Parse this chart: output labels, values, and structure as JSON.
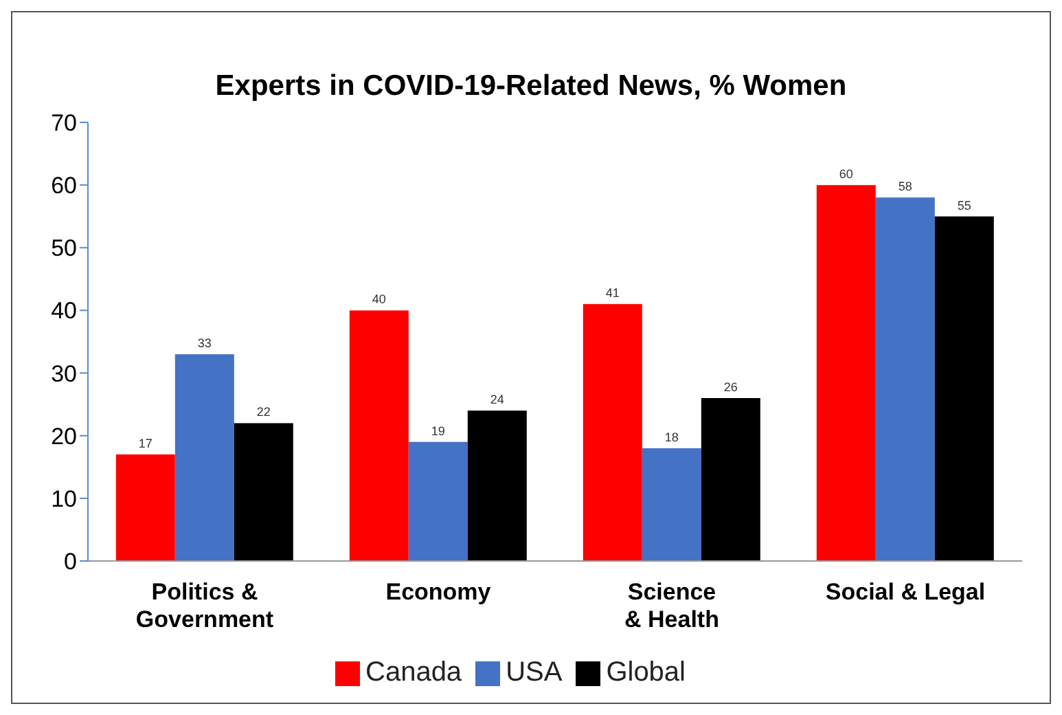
{
  "chart_data": {
    "type": "bar",
    "title": "Experts in COVID-19-Related News, % Women",
    "categories": [
      "Politics &\nGovernment",
      "Economy",
      "Science\n& Health",
      "Social & Legal"
    ],
    "series": [
      {
        "name": "Canada",
        "color": "#ff0000",
        "values": [
          17,
          40,
          41,
          60
        ]
      },
      {
        "name": "USA",
        "color": "#4472c4",
        "values": [
          33,
          19,
          18,
          58
        ]
      },
      {
        "name": "Global",
        "color": "#000000",
        "values": [
          22,
          24,
          26,
          55
        ]
      }
    ],
    "ylim": [
      0,
      70
    ],
    "yticks": [
      0,
      10,
      20,
      30,
      40,
      50,
      60,
      70
    ],
    "grid": false,
    "legend": "bottom",
    "data_labels": true
  }
}
